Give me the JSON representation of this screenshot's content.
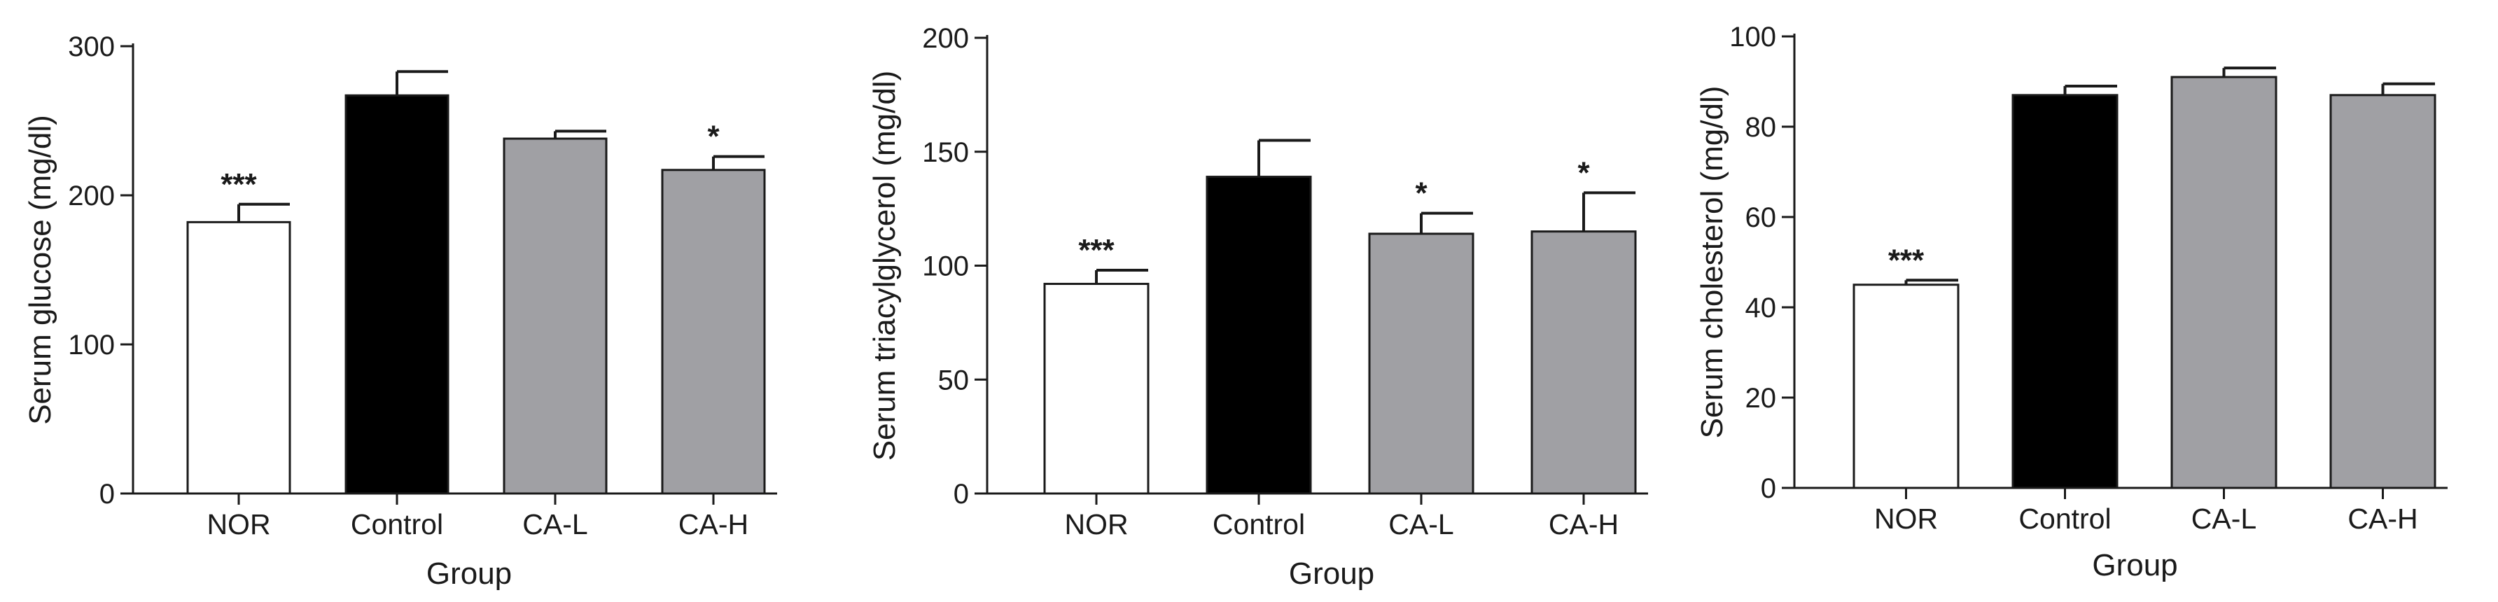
{
  "chart_data": [
    {
      "type": "bar",
      "title": "",
      "xlabel": "Group",
      "ylabel": "Serum glucose (mg/dl)",
      "ylim": [
        0,
        300
      ],
      "yticks": [
        0,
        100,
        200,
        300
      ],
      "categories": [
        "NOR",
        "Control",
        "CA-L",
        "CA-H"
      ],
      "values": [
        182,
        267,
        238,
        217
      ],
      "errors": [
        12,
        16,
        5,
        9
      ],
      "significance": [
        "***",
        "",
        "",
        "*"
      ],
      "colors": [
        "#ffffff",
        "#000000",
        "#a0a0a4",
        "#a0a0a4"
      ]
    },
    {
      "type": "bar",
      "title": "",
      "xlabel": "Group",
      "ylabel": "Serum triacylglycerol (mg/dl)",
      "ylim": [
        0,
        200
      ],
      "yticks": [
        0,
        50,
        100,
        150,
        200
      ],
      "categories": [
        "NOR",
        "Control",
        "CA-L",
        "CA-H"
      ],
      "values": [
        92,
        139,
        114,
        115
      ],
      "errors": [
        6,
        16,
        9,
        17
      ],
      "significance": [
        "***",
        "",
        "*",
        "*"
      ],
      "colors": [
        "#ffffff",
        "#000000",
        "#a0a0a4",
        "#a0a0a4"
      ]
    },
    {
      "type": "bar",
      "title": "",
      "xlabel": "Group",
      "ylabel": "Serum cholesterol (mg/dl)",
      "ylim": [
        0,
        100
      ],
      "yticks": [
        0,
        20,
        40,
        60,
        80,
        100
      ],
      "categories": [
        "NOR",
        "Control",
        "CA-L",
        "CA-H"
      ],
      "values": [
        45,
        87,
        91,
        87
      ],
      "errors": [
        1,
        2,
        2,
        2.5
      ],
      "significance": [
        "***",
        "",
        "",
        ""
      ],
      "colors": [
        "#ffffff",
        "#000000",
        "#a0a0a4",
        "#a0a0a4"
      ]
    }
  ]
}
